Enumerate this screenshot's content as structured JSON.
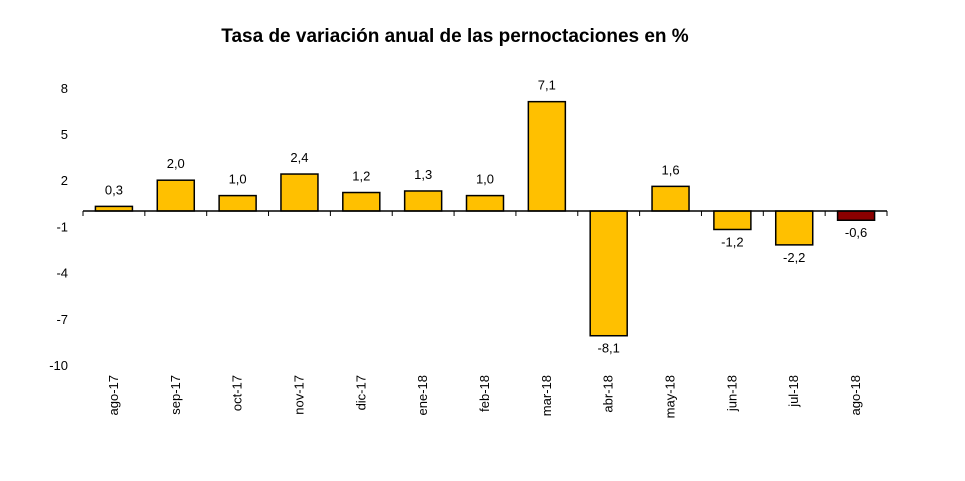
{
  "chart_data": {
    "type": "bar",
    "title": "Tasa de variación anual de las pernoctaciones en %",
    "xlabel": "",
    "ylabel": "",
    "categories": [
      "ago-17",
      "sep-17",
      "oct-17",
      "nov-17",
      "dic-17",
      "ene-18",
      "feb-18",
      "mar-18",
      "abr-18",
      "may-18",
      "jun-18",
      "jul-18",
      "ago-18"
    ],
    "values": [
      0.3,
      2.0,
      1.0,
      2.4,
      1.2,
      1.3,
      1.0,
      7.1,
      -8.1,
      1.6,
      -1.2,
      -2.2,
      -0.6
    ],
    "value_labels": [
      "0,3",
      "2,0",
      "1,0",
      "2,4",
      "1,2",
      "1,3",
      "1,0",
      "7,1",
      "-8,1",
      "1,6",
      "-1,2",
      "-2,2",
      "-0,6"
    ],
    "yticks": [
      8,
      5,
      2,
      -1,
      -4,
      -7,
      -10
    ],
    "ylim": [
      -10,
      8
    ],
    "grid": false,
    "legend": false,
    "colors": {
      "bar": "#FFC000",
      "highlight": "#8B0000",
      "outline": "#000000"
    },
    "highlight_index": 12
  }
}
